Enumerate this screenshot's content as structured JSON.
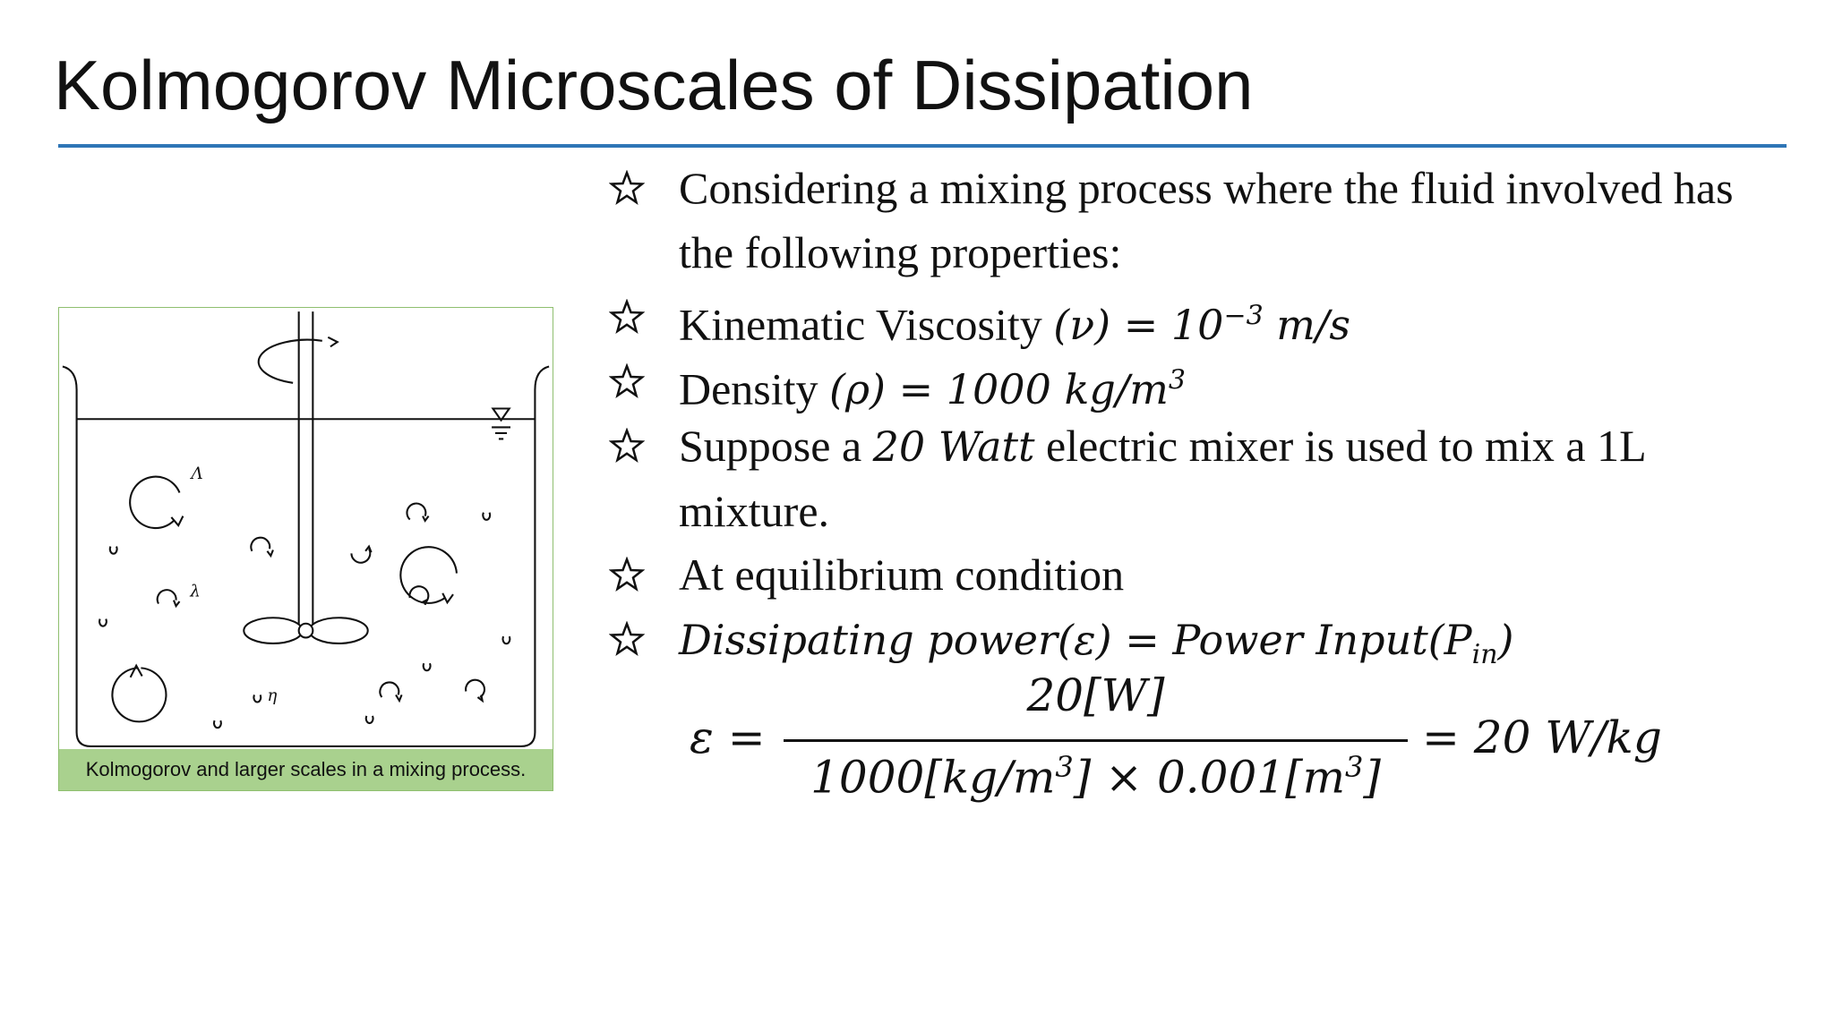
{
  "title": "Kolmogorov Microscales of Dissipation",
  "figure": {
    "caption": "Kolmogorov and larger scales in a mixing process.",
    "labels": [
      "Λ",
      "λ",
      "η"
    ]
  },
  "bullets": [
    [
      "Considering a mixing process where the fluid involved has the following properties:"
    ],
    [
      "Kinematic Viscosity ",
      "(ν) = 10",
      "−3",
      " m/s"
    ],
    [
      "Density ",
      "(ρ) = 1000 kg/m",
      "3"
    ],
    [
      "Suppose a ",
      "20 Watt",
      " electric mixer is used to mix a 1L mixture."
    ],
    [
      "At equilibrium condition"
    ],
    [
      "Dissipating power(ε) = Power Input(P",
      "in",
      ")"
    ]
  ],
  "equation": {
    "lhs": "ε =",
    "numerator": "20[W]",
    "denominator": [
      "1000[kg/m",
      "3",
      "] × 0.001[m",
      "3",
      "]"
    ],
    "rhs": "= 20 W/kg"
  }
}
